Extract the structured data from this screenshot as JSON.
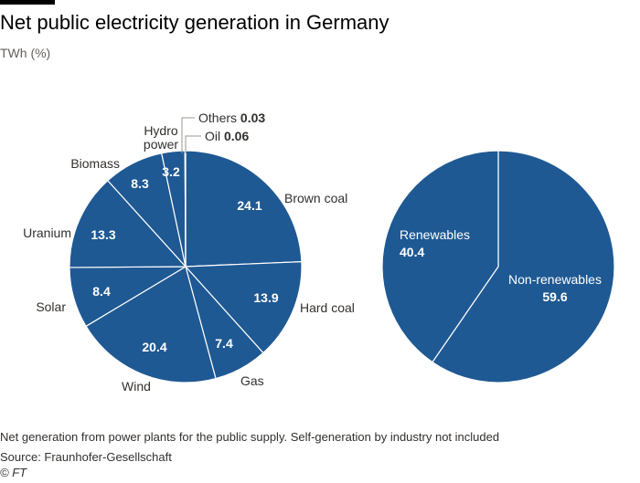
{
  "title": "Net public electricity generation in Germany",
  "subtitle": "TWh (%)",
  "footnote": "Net generation from power plants for the public supply. Self-generation by industry not included",
  "source": "Source: Fraunhofer-Gesellschaft",
  "copyright": "© FT",
  "colors": {
    "slice": "#1f5993",
    "stroke": "#ffffff",
    "text": "#33302e"
  },
  "chart_data": [
    {
      "type": "pie",
      "title": "",
      "slices": [
        {
          "label": "Brown coal",
          "value": 24.1
        },
        {
          "label": "Hard coal",
          "value": 13.9
        },
        {
          "label": "Gas",
          "value": 7.4
        },
        {
          "label": "Wind",
          "value": 20.4
        },
        {
          "label": "Solar",
          "value": 8.4
        },
        {
          "label": "Uranium",
          "value": 13.3
        },
        {
          "label": "Biomass",
          "value": 8.3
        },
        {
          "label": "Hydro power",
          "value": 3.2
        },
        {
          "label": "Oil",
          "value": 0.06
        },
        {
          "label": "Others",
          "value": 0.03
        }
      ]
    },
    {
      "type": "pie",
      "title": "",
      "slices": [
        {
          "label": "Non-renewables",
          "value": 59.6
        },
        {
          "label": "Renewables",
          "value": 40.4
        }
      ]
    }
  ]
}
